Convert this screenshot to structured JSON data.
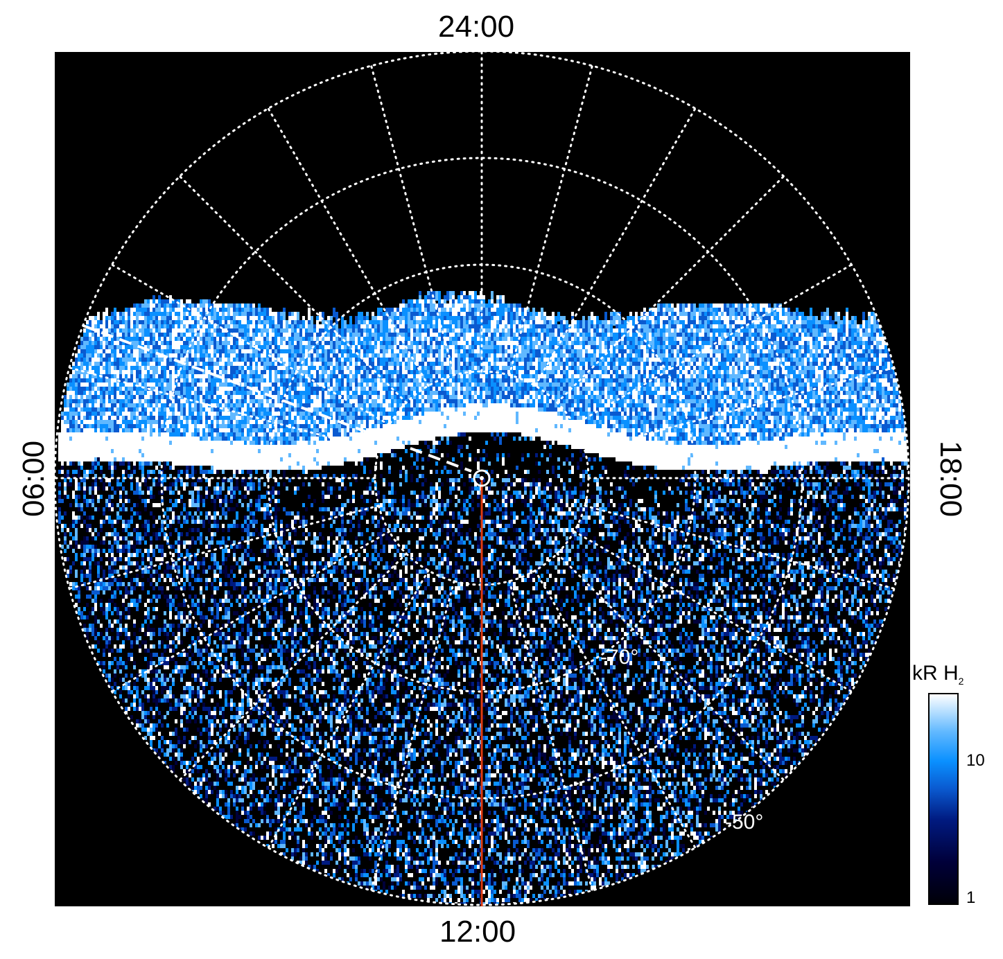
{
  "chart_data": {
    "type": "heatmap",
    "projection": "polar",
    "title": "",
    "local_time_labels": {
      "top": "24:00",
      "bottom": "12:00",
      "left": "06:00",
      "right": "18:00"
    },
    "latitude_labels": [
      "-70°",
      "-50°"
    ],
    "latitude_circles": [
      -80,
      -70,
      -60,
      -50
    ],
    "meridian_spacing_hours": 1,
    "colorbar": {
      "title": "kR H",
      "title_subscript": "2",
      "scale": "log",
      "ticks": [
        "1",
        "10"
      ],
      "range": [
        1,
        30
      ]
    },
    "colormap": [
      "#000008",
      "#00003a",
      "#001a80",
      "#0a5ad0",
      "#0a90ff",
      "#60b8ff",
      "#ffffff"
    ],
    "overlays": {
      "dashed_line_color": "#ffffff",
      "meridian_line_color": "#e03a10"
    }
  }
}
